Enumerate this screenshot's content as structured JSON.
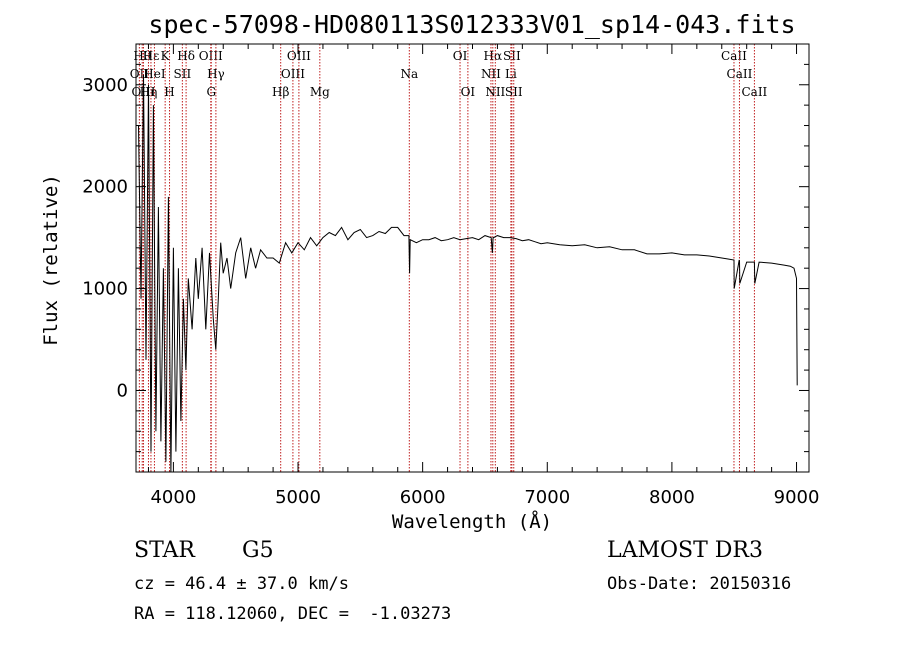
{
  "chart_data": {
    "type": "line",
    "title": "spec-57098-HD080113S012333V01_sp14-043.fits",
    "xlabel": "Wavelength (Å)",
    "ylabel": "Flux (relative)",
    "xlim": [
      3700,
      9100
    ],
    "ylim": [
      -800,
      3400
    ],
    "x_ticks": [
      4000,
      5000,
      6000,
      7000,
      8000,
      9000
    ],
    "y_ticks": [
      0,
      1000,
      2000,
      3000
    ],
    "grid": false,
    "series": [
      {
        "color": "#000000",
        "x": [
          3720,
          3740,
          3760,
          3780,
          3800,
          3820,
          3840,
          3860,
          3880,
          3900,
          3920,
          3940,
          3960,
          3980,
          4000,
          4020,
          4040,
          4060,
          4080,
          4100,
          4120,
          4150,
          4180,
          4200,
          4230,
          4260,
          4290,
          4320,
          4340,
          4360,
          4380,
          4400,
          4430,
          4460,
          4500,
          4540,
          4580,
          4620,
          4660,
          4700,
          4750,
          4800,
          4850,
          4900,
          4950,
          5000,
          5050,
          5100,
          5150,
          5200,
          5250,
          5300,
          5350,
          5400,
          5450,
          5500,
          5550,
          5600,
          5650,
          5700,
          5750,
          5800,
          5850,
          5890,
          5895,
          5900,
          5950,
          6000,
          6050,
          6100,
          6150,
          6200,
          6250,
          6300,
          6350,
          6400,
          6450,
          6500,
          6550,
          6560,
          6565,
          6570,
          6600,
          6650,
          6700,
          6750,
          6800,
          6850,
          6900,
          6950,
          7000,
          7100,
          7200,
          7300,
          7400,
          7500,
          7600,
          7700,
          7800,
          7900,
          8000,
          8100,
          8200,
          8300,
          8400,
          8450,
          8498,
          8500,
          8540,
          8542,
          8545,
          8600,
          8662,
          8665,
          8700,
          8800,
          8900,
          8950,
          8980,
          9000,
          9005
        ],
        "y": [
          2600,
          900,
          3100,
          300,
          3000,
          -600,
          2800,
          -400,
          1800,
          -500,
          1200,
          -700,
          1900,
          -800,
          1400,
          -600,
          1200,
          -300,
          900,
          200,
          1100,
          600,
          1300,
          900,
          1400,
          600,
          1350,
          700,
          400,
          900,
          1450,
          1150,
          1300,
          1000,
          1350,
          1500,
          1100,
          1400,
          1200,
          1380,
          1300,
          1300,
          1250,
          1450,
          1350,
          1450,
          1380,
          1500,
          1420,
          1500,
          1550,
          1520,
          1600,
          1480,
          1550,
          1580,
          1500,
          1520,
          1560,
          1540,
          1600,
          1600,
          1520,
          1520,
          1150,
          1480,
          1450,
          1480,
          1480,
          1500,
          1470,
          1480,
          1500,
          1480,
          1490,
          1500,
          1480,
          1520,
          1500,
          1350,
          1500,
          1500,
          1520,
          1500,
          1500,
          1490,
          1470,
          1480,
          1460,
          1440,
          1450,
          1430,
          1420,
          1430,
          1400,
          1410,
          1380,
          1380,
          1340,
          1340,
          1350,
          1330,
          1330,
          1320,
          1300,
          1290,
          1280,
          1000,
          1280,
          1270,
          1050,
          1260,
          1260,
          1050,
          1260,
          1250,
          1230,
          1220,
          1200,
          1100,
          50
        ]
      }
    ],
    "line_markers": [
      {
        "name": "OII",
        "x": 3727,
        "row": 1
      },
      {
        "name": "Hθ",
        "x": 3750,
        "row": 0
      },
      {
        "name": "OIII",
        "x": 3760,
        "row": 2
      },
      {
        "name": "Hη",
        "x": 3800,
        "row": 2
      },
      {
        "name": "Hε",
        "x": 3820,
        "row": 0
      },
      {
        "name": "HeI",
        "x": 3848,
        "row": 1
      },
      {
        "name": "K",
        "x": 3934,
        "row": 0
      },
      {
        "name": "SII",
        "x": 4072,
        "row": 1
      },
      {
        "name": "H",
        "x": 3969,
        "row": 2
      },
      {
        "name": "Hδ",
        "x": 4102,
        "row": 0
      },
      {
        "name": "OIII",
        "x": 4300,
        "row": 0
      },
      {
        "name": "Hγ",
        "x": 4341,
        "row": 1
      },
      {
        "name": "G",
        "x": 4304,
        "row": 2
      },
      {
        "name": "Hβ",
        "x": 4861,
        "row": 2
      },
      {
        "name": "OIII",
        "x": 4959,
        "row": 1
      },
      {
        "name": "OIII",
        "x": 5007,
        "row": 0
      },
      {
        "name": "Mg",
        "x": 5175,
        "row": 2
      },
      {
        "name": "Na",
        "x": 5893,
        "row": 1
      },
      {
        "name": "OI",
        "x": 6300,
        "row": 0
      },
      {
        "name": "OI",
        "x": 6363,
        "row": 2
      },
      {
        "name": "Hα",
        "x": 6563,
        "row": 0
      },
      {
        "name": "NII",
        "x": 6548,
        "row": 1
      },
      {
        "name": "NII",
        "x": 6583,
        "row": 2
      },
      {
        "name": "SII",
        "x": 6716,
        "row": 0
      },
      {
        "name": "Li",
        "x": 6708,
        "row": 1
      },
      {
        "name": "SII",
        "x": 6731,
        "row": 2
      },
      {
        "name": "CaII",
        "x": 8498,
        "row": 0
      },
      {
        "name": "CaII",
        "x": 8542,
        "row": 1
      },
      {
        "name": "CaII",
        "x": 8662,
        "row": 2
      }
    ]
  },
  "info": {
    "class_label": "STAR",
    "subclass": "G5",
    "survey": "LAMOST DR3",
    "cz_text": "cz = 46.4 ± 37.0 km/s",
    "obs_date": "Obs-Date: 20150316",
    "coords": "RA = 118.12060, DEC =  -1.03273"
  }
}
